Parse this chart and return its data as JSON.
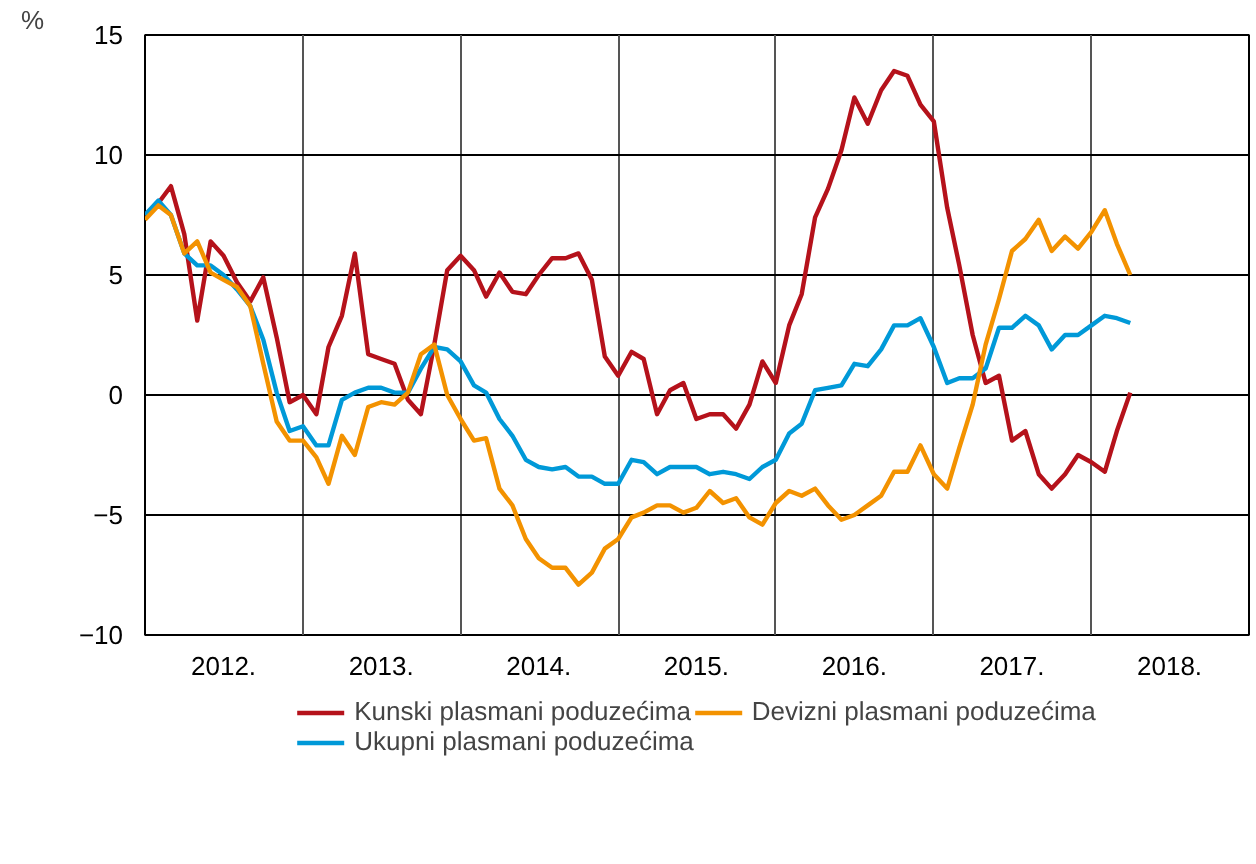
{
  "chart_data": {
    "type": "line",
    "ylabel": "%",
    "x": [
      "2012-01",
      "2012-02",
      "2012-03",
      "2012-04",
      "2012-05",
      "2012-06",
      "2012-07",
      "2012-08",
      "2012-09",
      "2012-10",
      "2012-11",
      "2012-12",
      "2013-01",
      "2013-02",
      "2013-03",
      "2013-04",
      "2013-05",
      "2013-06",
      "2013-07",
      "2013-08",
      "2013-09",
      "2013-10",
      "2013-11",
      "2013-12",
      "2014-01",
      "2014-02",
      "2014-03",
      "2014-04",
      "2014-05",
      "2014-06",
      "2014-07",
      "2014-08",
      "2014-09",
      "2014-10",
      "2014-11",
      "2014-12",
      "2015-01",
      "2015-02",
      "2015-03",
      "2015-04",
      "2015-05",
      "2015-06",
      "2015-07",
      "2015-08",
      "2015-09",
      "2015-10",
      "2015-11",
      "2015-12",
      "2016-01",
      "2016-02",
      "2016-03",
      "2016-04",
      "2016-05",
      "2016-06",
      "2016-07",
      "2016-08",
      "2016-09",
      "2016-10",
      "2016-11",
      "2016-12",
      "2017-01",
      "2017-02",
      "2017-03",
      "2017-04",
      "2017-05",
      "2017-06",
      "2017-07",
      "2017-08",
      "2017-09",
      "2017-10",
      "2017-11",
      "2017-12",
      "2018-01",
      "2018-02",
      "2018-03",
      "2018-04"
    ],
    "series": [
      {
        "name": "Kunski plasmani poduzećima",
        "color": "#b5121b",
        "values": [
          7.5,
          8.0,
          8.7,
          6.7,
          3.1,
          6.4,
          5.8,
          4.7,
          3.9,
          4.9,
          2.4,
          -0.3,
          0.0,
          -0.8,
          2.0,
          3.3,
          5.9,
          1.7,
          1.5,
          1.3,
          -0.2,
          -0.8,
          2.1,
          5.2,
          5.8,
          5.2,
          4.1,
          5.1,
          4.3,
          4.2,
          5.0,
          5.7,
          5.7,
          5.9,
          4.8,
          1.6,
          0.8,
          1.8,
          1.5,
          -0.8,
          0.2,
          0.5,
          -1.0,
          -0.8,
          -0.8,
          -1.4,
          -0.4,
          1.4,
          0.5,
          2.9,
          4.2,
          7.4,
          8.6,
          10.2,
          12.4,
          11.3,
          12.7,
          13.5,
          13.3,
          12.1,
          11.4,
          7.8,
          5.4,
          2.5,
          0.5,
          0.8,
          -1.9,
          -1.5,
          -3.3,
          -3.9,
          -3.3,
          -2.5,
          -2.8,
          -3.2,
          -1.5,
          0.1
        ]
      },
      {
        "name": "Ukupni plasmani poduzećima",
        "color": "#0099d8",
        "values": [
          7.5,
          8.1,
          7.5,
          5.9,
          5.4,
          5.4,
          5.0,
          4.4,
          3.7,
          2.3,
          0.1,
          -1.5,
          -1.3,
          -2.1,
          -2.1,
          -0.2,
          0.1,
          0.3,
          0.3,
          0.1,
          0.1,
          1.1,
          2.0,
          1.9,
          1.4,
          0.4,
          0.1,
          -1.0,
          -1.7,
          -2.7,
          -3.0,
          -3.1,
          -3.0,
          -3.4,
          -3.4,
          -3.7,
          -3.7,
          -2.7,
          -2.8,
          -3.3,
          -3.0,
          -3.0,
          -3.0,
          -3.3,
          -3.2,
          -3.3,
          -3.5,
          -3.0,
          -2.7,
          -1.6,
          -1.2,
          0.2,
          0.3,
          0.4,
          1.3,
          1.2,
          1.9,
          2.9,
          2.9,
          3.2,
          2.0,
          0.5,
          0.7,
          0.7,
          1.1,
          2.8,
          2.8,
          3.3,
          2.9,
          1.9,
          2.5,
          2.5,
          2.9,
          3.3,
          3.2,
          3.0
        ]
      },
      {
        "name": "Devizni plasmani poduzećima",
        "color": "#f39200",
        "values": [
          7.3,
          7.9,
          7.5,
          5.9,
          6.4,
          5.1,
          4.8,
          4.5,
          3.7,
          1.3,
          -1.1,
          -1.9,
          -1.9,
          -2.6,
          -3.7,
          -1.7,
          -2.5,
          -0.5,
          -0.3,
          -0.4,
          0.1,
          1.7,
          2.1,
          0.0,
          -1.0,
          -1.9,
          -1.8,
          -3.9,
          -4.6,
          -6.0,
          -6.8,
          -7.2,
          -7.2,
          -7.9,
          -7.4,
          -6.4,
          -6.0,
          -5.1,
          -4.9,
          -4.6,
          -4.6,
          -4.9,
          -4.7,
          -4.0,
          -4.5,
          -4.3,
          -5.1,
          -5.4,
          -4.5,
          -4.0,
          -4.2,
          -3.9,
          -4.6,
          -5.2,
          -5.0,
          -4.6,
          -4.2,
          -3.2,
          -3.2,
          -2.1,
          -3.3,
          -3.9,
          -2.2,
          -0.4,
          2.1,
          4.0,
          6.0,
          6.5,
          7.3,
          6.0,
          6.6,
          6.1,
          6.8,
          7.7,
          6.3,
          5.0
        ]
      }
    ],
    "xlim": [
      "2012-01",
      "2019-01"
    ],
    "xticks": [
      {
        "value": "2012-01",
        "label": null
      },
      {
        "value": "2012-07",
        "label": "2012."
      },
      {
        "value": "2013-01",
        "label": null
      },
      {
        "value": "2013-07",
        "label": "2013."
      },
      {
        "value": "2014-01",
        "label": null
      },
      {
        "value": "2014-07",
        "label": "2014."
      },
      {
        "value": "2015-01",
        "label": null
      },
      {
        "value": "2015-07",
        "label": "2015."
      },
      {
        "value": "2016-01",
        "label": null
      },
      {
        "value": "2016-07",
        "label": "2016."
      },
      {
        "value": "2017-01",
        "label": null
      },
      {
        "value": "2017-07",
        "label": "2017."
      },
      {
        "value": "2018-01",
        "label": null
      },
      {
        "value": "2018-07",
        "label": "2018."
      },
      {
        "value": "2019-01",
        "label": null
      }
    ],
    "ylim": [
      -10,
      15
    ],
    "yticks": [
      -10,
      -5,
      0,
      5,
      10,
      15
    ],
    "grid": true,
    "legend": "bottom",
    "line_style": "solid",
    "marker": "none"
  }
}
